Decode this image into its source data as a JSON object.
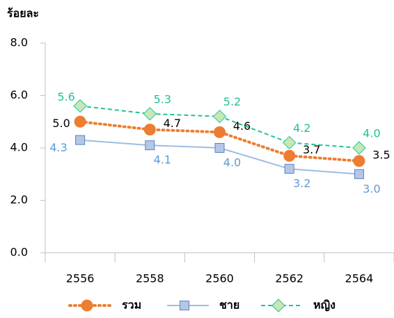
{
  "chart_data": {
    "type": "line",
    "y_label": "ร้อยละ",
    "categories": [
      "2556",
      "2558",
      "2560",
      "2562",
      "2564"
    ],
    "ylim": [
      0,
      8
    ],
    "yticks": [
      {
        "value": 0,
        "label": "0.0"
      },
      {
        "value": 2,
        "label": "2.0"
      },
      {
        "value": 4,
        "label": "4.0"
      },
      {
        "value": 6,
        "label": "6.0"
      },
      {
        "value": 8,
        "label": "8.0"
      }
    ],
    "series": [
      {
        "name": "รวม",
        "color": "#ed7d31",
        "values": [
          5.0,
          4.7,
          4.6,
          3.7,
          3.5
        ],
        "value_labels": [
          "5.0",
          "4.7",
          "4.6",
          "3.7",
          "3.5"
        ]
      },
      {
        "name": "ชาย",
        "color": "#9dbde3",
        "values": [
          4.3,
          4.1,
          4.0,
          3.2,
          3.0
        ],
        "value_labels": [
          "4.3",
          "4.1",
          "4.0",
          "3.2",
          "3.0"
        ]
      },
      {
        "name": "หญิง",
        "color": "#1ec396",
        "values": [
          5.6,
          5.3,
          5.2,
          4.2,
          4.0
        ],
        "value_labels": [
          "5.6",
          "5.3",
          "5.2",
          "4.2",
          "4.0"
        ]
      }
    ]
  }
}
